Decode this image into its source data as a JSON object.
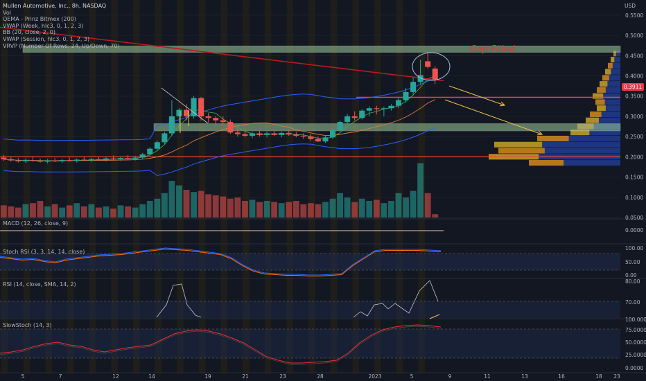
{
  "header": {
    "symbol_line": "Mullen Automotive, Inc., 8h, NASDAQ",
    "indicators": [
      "Vol",
      "QEMA - Prinz Bitmex (200)",
      "VWAP (Week, hlc3, 0, 1, 2, 3)",
      "BB (20, close, 2, 0)",
      "VWAP (Session, hlc3, 0, 1, 2, 3)",
      "VRVP (Number Of Rows, 24, Up/Down, 70)"
    ],
    "currency": "USD"
  },
  "annotations": {
    "gap_filled": "Gap Filled",
    "current_price": "0.3911"
  },
  "panes": {
    "macd": "MACD (12, 26, close, 9)",
    "stoch_rsi": "Stoch RSI (3, 3, 14, 14, close)",
    "rsi": "RSI (14, close, SMA, 14, 2)",
    "slow_stoch": "SlowStoch (14, 3)"
  },
  "colors": {
    "up": "#26a69a",
    "down": "#ef5350",
    "zone": "#9cc99a",
    "arrow": "#e8c14b",
    "level": "#f2453d",
    "bb": "#2962ff",
    "background": "#131722"
  },
  "chart_data": {
    "type": "candlestick",
    "x_tick_labels": [
      "5",
      "7",
      "12",
      "14",
      "19",
      "21",
      "23",
      "28",
      "2023",
      "5",
      "9",
      "11",
      "13",
      "16",
      "18",
      "20",
      "23"
    ],
    "price_axis": {
      "ticks": [
        "0.5500",
        "0.5000",
        "0.4500",
        "0.4000",
        "0.3500",
        "0.3000",
        "0.2500",
        "0.2000",
        "0.1500",
        "0.1000",
        "0.0500"
      ],
      "range": [
        0.05,
        0.56
      ]
    },
    "candles": [
      {
        "o": 0.198,
        "h": 0.205,
        "l": 0.19,
        "c": 0.194
      },
      {
        "o": 0.194,
        "h": 0.2,
        "l": 0.188,
        "c": 0.191
      },
      {
        "o": 0.191,
        "h": 0.197,
        "l": 0.186,
        "c": 0.189
      },
      {
        "o": 0.189,
        "h": 0.195,
        "l": 0.185,
        "c": 0.192
      },
      {
        "o": 0.192,
        "h": 0.199,
        "l": 0.188,
        "c": 0.19
      },
      {
        "o": 0.19,
        "h": 0.196,
        "l": 0.186,
        "c": 0.188
      },
      {
        "o": 0.188,
        "h": 0.194,
        "l": 0.184,
        "c": 0.191
      },
      {
        "o": 0.191,
        "h": 0.197,
        "l": 0.187,
        "c": 0.189
      },
      {
        "o": 0.189,
        "h": 0.195,
        "l": 0.185,
        "c": 0.192
      },
      {
        "o": 0.192,
        "h": 0.198,
        "l": 0.188,
        "c": 0.19
      },
      {
        "o": 0.19,
        "h": 0.196,
        "l": 0.186,
        "c": 0.193
      },
      {
        "o": 0.193,
        "h": 0.199,
        "l": 0.189,
        "c": 0.191
      },
      {
        "o": 0.191,
        "h": 0.197,
        "l": 0.187,
        "c": 0.194
      },
      {
        "o": 0.194,
        "h": 0.2,
        "l": 0.19,
        "c": 0.192
      },
      {
        "o": 0.192,
        "h": 0.199,
        "l": 0.188,
        "c": 0.196
      },
      {
        "o": 0.196,
        "h": 0.203,
        "l": 0.192,
        "c": 0.194
      },
      {
        "o": 0.194,
        "h": 0.201,
        "l": 0.19,
        "c": 0.197
      },
      {
        "o": 0.197,
        "h": 0.204,
        "l": 0.193,
        "c": 0.195
      },
      {
        "o": 0.195,
        "h": 0.202,
        "l": 0.191,
        "c": 0.198
      },
      {
        "o": 0.198,
        "h": 0.21,
        "l": 0.194,
        "c": 0.206
      },
      {
        "o": 0.206,
        "h": 0.224,
        "l": 0.202,
        "c": 0.22
      },
      {
        "o": 0.22,
        "h": 0.24,
        "l": 0.215,
        "c": 0.236
      },
      {
        "o": 0.236,
        "h": 0.262,
        "l": 0.231,
        "c": 0.258
      },
      {
        "o": 0.258,
        "h": 0.34,
        "l": 0.252,
        "c": 0.3
      },
      {
        "o": 0.3,
        "h": 0.32,
        "l": 0.27,
        "c": 0.316
      },
      {
        "o": 0.316,
        "h": 0.33,
        "l": 0.29,
        "c": 0.3
      },
      {
        "o": 0.3,
        "h": 0.35,
        "l": 0.294,
        "c": 0.345
      },
      {
        "o": 0.345,
        "h": 0.348,
        "l": 0.29,
        "c": 0.3
      },
      {
        "o": 0.3,
        "h": 0.308,
        "l": 0.284,
        "c": 0.296
      },
      {
        "o": 0.296,
        "h": 0.3,
        "l": 0.276,
        "c": 0.29
      },
      {
        "o": 0.29,
        "h": 0.3,
        "l": 0.28,
        "c": 0.286
      },
      {
        "o": 0.286,
        "h": 0.292,
        "l": 0.256,
        "c": 0.26
      },
      {
        "o": 0.26,
        "h": 0.27,
        "l": 0.25,
        "c": 0.256
      },
      {
        "o": 0.256,
        "h": 0.264,
        "l": 0.248,
        "c": 0.252
      },
      {
        "o": 0.252,
        "h": 0.262,
        "l": 0.246,
        "c": 0.258
      },
      {
        "o": 0.258,
        "h": 0.266,
        "l": 0.25,
        "c": 0.254
      },
      {
        "o": 0.254,
        "h": 0.262,
        "l": 0.248,
        "c": 0.258
      },
      {
        "o": 0.258,
        "h": 0.266,
        "l": 0.252,
        "c": 0.254
      },
      {
        "o": 0.254,
        "h": 0.262,
        "l": 0.248,
        "c": 0.259
      },
      {
        "o": 0.259,
        "h": 0.266,
        "l": 0.252,
        "c": 0.255
      },
      {
        "o": 0.255,
        "h": 0.262,
        "l": 0.248,
        "c": 0.252
      },
      {
        "o": 0.252,
        "h": 0.258,
        "l": 0.244,
        "c": 0.25
      },
      {
        "o": 0.25,
        "h": 0.256,
        "l": 0.24,
        "c": 0.244
      },
      {
        "o": 0.244,
        "h": 0.25,
        "l": 0.236,
        "c": 0.238
      },
      {
        "o": 0.238,
        "h": 0.252,
        "l": 0.234,
        "c": 0.248
      },
      {
        "o": 0.248,
        "h": 0.27,
        "l": 0.244,
        "c": 0.266
      },
      {
        "o": 0.266,
        "h": 0.29,
        "l": 0.262,
        "c": 0.286
      },
      {
        "o": 0.286,
        "h": 0.306,
        "l": 0.28,
        "c": 0.3
      },
      {
        "o": 0.3,
        "h": 0.312,
        "l": 0.29,
        "c": 0.296
      },
      {
        "o": 0.296,
        "h": 0.318,
        "l": 0.292,
        "c": 0.314
      },
      {
        "o": 0.314,
        "h": 0.325,
        "l": 0.3,
        "c": 0.32
      },
      {
        "o": 0.32,
        "h": 0.326,
        "l": 0.305,
        "c": 0.318
      },
      {
        "o": 0.318,
        "h": 0.324,
        "l": 0.3,
        "c": 0.32
      },
      {
        "o": 0.32,
        "h": 0.33,
        "l": 0.314,
        "c": 0.326
      },
      {
        "o": 0.326,
        "h": 0.345,
        "l": 0.32,
        "c": 0.34
      },
      {
        "o": 0.34,
        "h": 0.37,
        "l": 0.335,
        "c": 0.36
      },
      {
        "o": 0.36,
        "h": 0.395,
        "l": 0.352,
        "c": 0.385
      },
      {
        "o": 0.385,
        "h": 0.44,
        "l": 0.378,
        "c": 0.402
      },
      {
        "o": 0.436,
        "h": 0.46,
        "l": 0.418,
        "c": 0.422
      },
      {
        "o": 0.418,
        "h": 0.424,
        "l": 0.38,
        "c": 0.391
      }
    ],
    "volume": [
      0.22,
      0.2,
      0.18,
      0.24,
      0.26,
      0.3,
      0.2,
      0.24,
      0.18,
      0.22,
      0.26,
      0.2,
      0.24,
      0.18,
      0.2,
      0.16,
      0.22,
      0.2,
      0.18,
      0.24,
      0.3,
      0.34,
      0.44,
      0.66,
      0.58,
      0.5,
      0.46,
      0.48,
      0.42,
      0.4,
      0.38,
      0.34,
      0.36,
      0.3,
      0.32,
      0.28,
      0.3,
      0.28,
      0.26,
      0.28,
      0.3,
      0.24,
      0.26,
      0.24,
      0.28,
      0.34,
      0.44,
      0.36,
      0.28,
      0.34,
      0.3,
      0.32,
      0.26,
      0.3,
      0.44,
      0.36,
      0.48,
      0.98,
      0.44,
      0.06
    ],
    "zones": [
      {
        "name": "top-zone",
        "low": 0.458,
        "high": 0.474
      },
      {
        "name": "mid-zone",
        "low": 0.264,
        "high": 0.282
      }
    ],
    "levels": [
      0.347,
      0.2
    ],
    "oscillators": {
      "macd_value": "0.0000",
      "stoch_rsi_ticks": [
        "100.00",
        "50.00",
        "0.00"
      ],
      "rsi_ticks": [
        "80.00",
        "70.00",
        "100.0000"
      ],
      "slowstoch_ticks": [
        "75.0000",
        "50.0000",
        "25.0000",
        "0.0000"
      ]
    }
  }
}
